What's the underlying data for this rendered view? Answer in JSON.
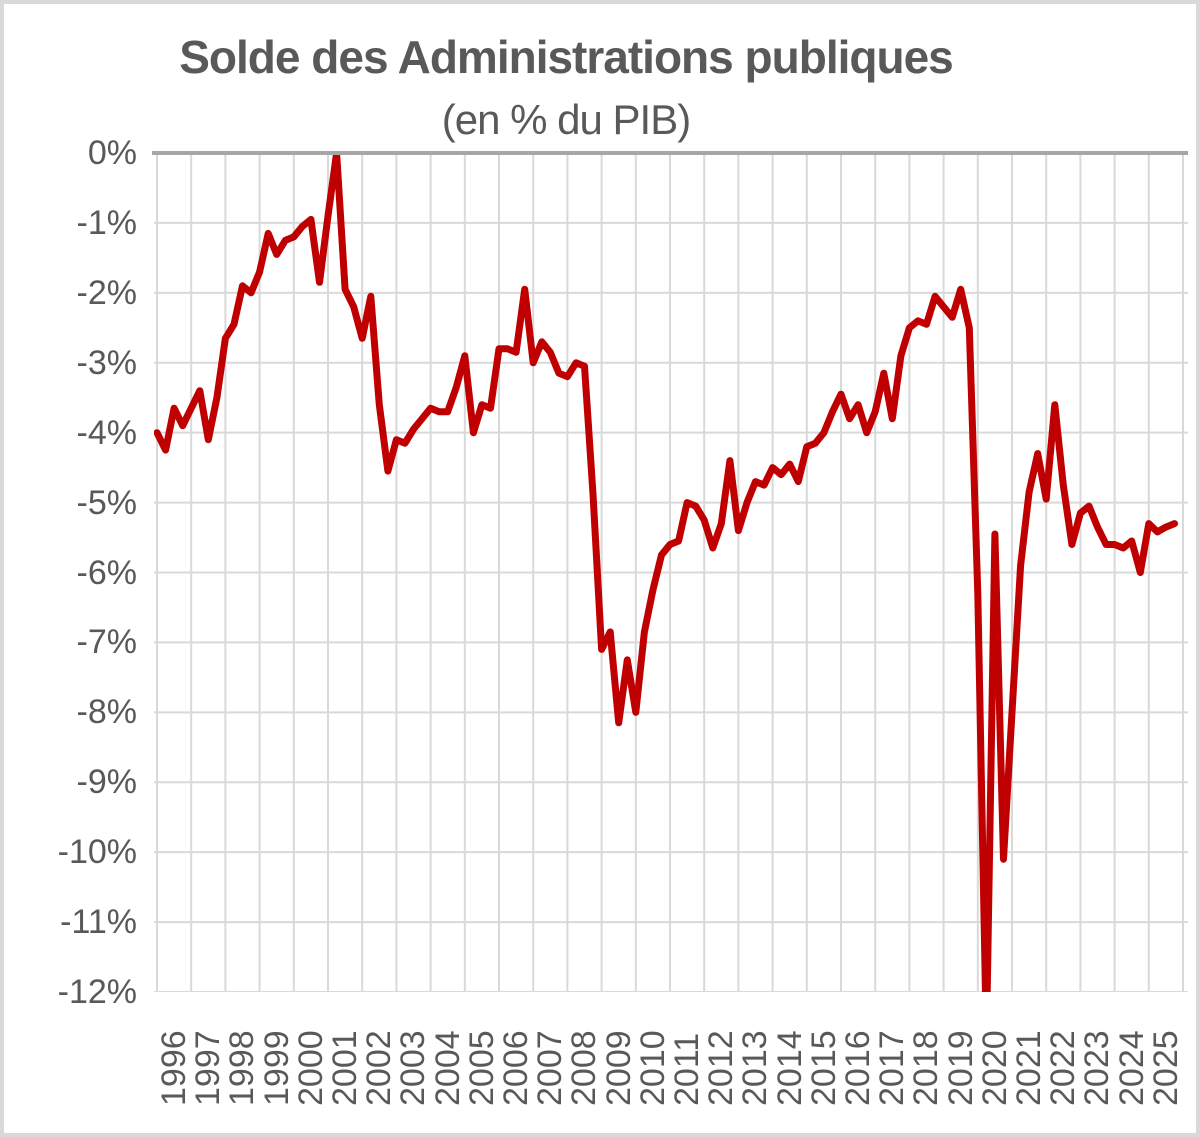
{
  "title": "Solde des Administrations publiques",
  "subtitle": "(en % du PIB)",
  "colors": {
    "line": "#c00000",
    "gridline": "#d9d9d9",
    "zero_axis_line": "#a6a6a6",
    "label_text": "#595959",
    "title_text": "#595959",
    "outer_border": "#d9d9d9",
    "background": "#ffffff"
  },
  "chart_data": {
    "type": "line",
    "title": "Solde des Administrations publiques",
    "subtitle": "(en % du PIB)",
    "frequency": "quarterly",
    "x_start": "1996Q1",
    "x_end": "2025Q4",
    "ylim": [
      -12,
      0
    ],
    "grid": true,
    "legend": false,
    "y_tick_labels": [
      "0%",
      "-1%",
      "-2%",
      "-3%",
      "-4%",
      "-5%",
      "-6%",
      "-7%",
      "-8%",
      "-9%",
      "-10%",
      "-11%",
      "-12%"
    ],
    "x_tick_labels": [
      "1996",
      "1997",
      "1998",
      "1999",
      "2000",
      "2001",
      "2002",
      "2003",
      "2004",
      "2005",
      "2006",
      "2007",
      "2008",
      "2009",
      "2010",
      "2011",
      "2012",
      "2013",
      "2014",
      "2015",
      "2016",
      "2017",
      "2018",
      "2019",
      "2020",
      "2021",
      "2022",
      "2023",
      "2024",
      "2025"
    ],
    "series": [
      {
        "name": "Solde des Administrations publiques (en % du PIB)",
        "values_pct_gdp": [
          -4.0,
          -4.25,
          -3.65,
          -3.9,
          -3.65,
          -3.4,
          -4.1,
          -3.5,
          -2.65,
          -2.45,
          -1.9,
          -2.0,
          -1.7,
          -1.15,
          -1.45,
          -1.25,
          -1.2,
          -1.05,
          -0.95,
          -1.85,
          -0.9,
          0.0,
          -1.95,
          -2.2,
          -2.65,
          -2.05,
          -3.6,
          -4.55,
          -4.1,
          -4.15,
          -3.95,
          -3.8,
          -3.65,
          -3.7,
          -3.7,
          -3.35,
          -2.9,
          -4.0,
          -3.6,
          -3.65,
          -2.8,
          -2.8,
          -2.85,
          -1.95,
          -3.0,
          -2.7,
          -2.85,
          -3.15,
          -3.2,
          -3.0,
          -3.05,
          -4.9,
          -7.1,
          -6.85,
          -8.15,
          -7.25,
          -8.0,
          -6.85,
          -6.25,
          -5.75,
          -5.6,
          -5.55,
          -5.0,
          -5.05,
          -5.25,
          -5.65,
          -5.3,
          -4.4,
          -5.4,
          -5.0,
          -4.7,
          -4.75,
          -4.5,
          -4.6,
          -4.45,
          -4.7,
          -4.2,
          -4.15,
          -4.0,
          -3.7,
          -3.45,
          -3.8,
          -3.6,
          -4.0,
          -3.7,
          -3.15,
          -3.8,
          -2.9,
          -2.5,
          -2.4,
          -2.45,
          -2.05,
          -2.2,
          -2.35,
          -1.95,
          -2.5,
          -6.3,
          -12.7,
          -5.45,
          -10.1,
          -8.0,
          -5.9,
          -4.85,
          -4.3,
          -4.95,
          -3.6,
          -4.75,
          -5.6,
          -5.15,
          -5.05,
          -5.35,
          -5.6,
          -5.6,
          -5.65,
          -5.55,
          -6.0,
          -5.3,
          -5.42,
          -5.35,
          -5.3
        ]
      }
    ],
    "clipping_note": "2020Q2 value extends below the -12% plot floor and is visually clipped"
  }
}
